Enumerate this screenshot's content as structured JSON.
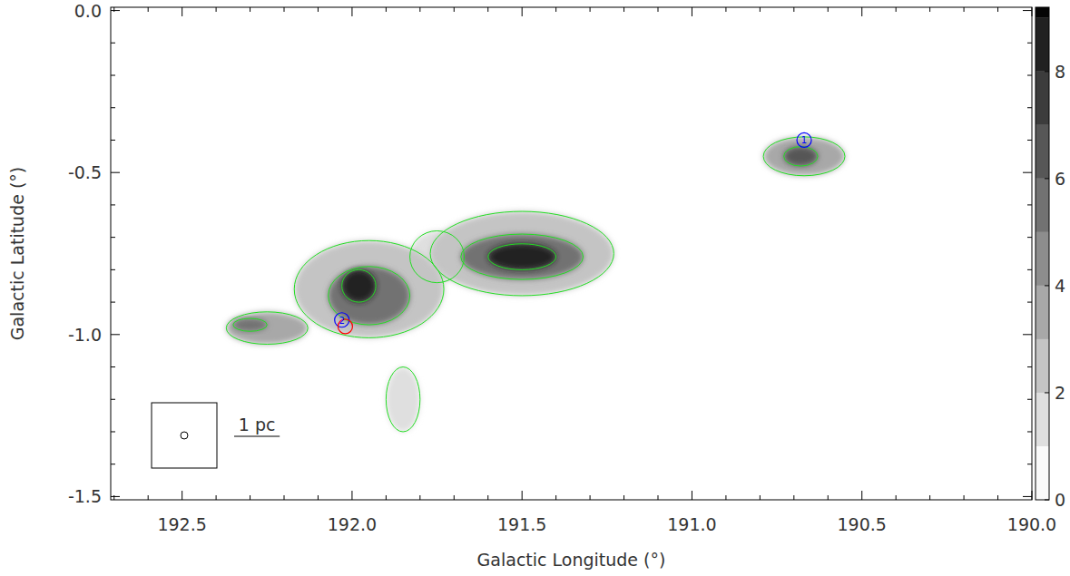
{
  "chart_data": {
    "type": "heatmap",
    "x_label": "Galactic Longitude (°)",
    "y_label": "Galactic Latitude (°)",
    "xlim": [
      192.71,
      190.0
    ],
    "ylim": [
      -1.51,
      0.01
    ],
    "xticks": [
      {
        "value": 192.5,
        "label": "192.5"
      },
      {
        "value": 192.0,
        "label": "192.0"
      },
      {
        "value": 191.5,
        "label": "191.5"
      },
      {
        "value": 191.0,
        "label": "191.0"
      },
      {
        "value": 190.5,
        "label": "190.5"
      },
      {
        "value": 190.0,
        "label": "190.0"
      }
    ],
    "yticks": [
      {
        "value": 0,
        "label": "0.0"
      },
      {
        "value": -0.5,
        "label": "-0.5"
      },
      {
        "value": -1.0,
        "label": "-1.0"
      },
      {
        "value": -1.5,
        "label": "-1.5"
      }
    ],
    "clumps": [
      {
        "l": 191.85,
        "b": -1.2,
        "size_l": 0.05,
        "size_b": 0.1,
        "value": 1
      },
      {
        "l": 191.75,
        "b": -0.76,
        "size_l": 0.08,
        "size_b": 0.08,
        "value": 1.5
      },
      {
        "l": 191.5,
        "b": -0.75,
        "size_l": 0.27,
        "size_b": 0.13,
        "value": 2
      },
      {
        "l": 191.95,
        "b": -0.86,
        "size_l": 0.22,
        "size_b": 0.15,
        "value": 2
      },
      {
        "l": 190.67,
        "b": -0.45,
        "size_l": 0.12,
        "size_b": 0.06,
        "value": 3
      },
      {
        "l": 192.25,
        "b": -0.98,
        "size_l": 0.12,
        "size_b": 0.05,
        "value": 3
      },
      {
        "l": 191.5,
        "b": -0.76,
        "size_l": 0.18,
        "size_b": 0.07,
        "value": 5
      },
      {
        "l": 191.95,
        "b": -0.88,
        "size_l": 0.12,
        "size_b": 0.09,
        "value": 5
      },
      {
        "l": 192.3,
        "b": -0.97,
        "size_l": 0.05,
        "size_b": 0.02,
        "value": 5
      },
      {
        "l": 190.68,
        "b": -0.45,
        "size_l": 0.05,
        "size_b": 0.03,
        "value": 6
      },
      {
        "l": 191.5,
        "b": -0.76,
        "size_l": 0.1,
        "size_b": 0.04,
        "value": 8
      },
      {
        "l": 191.98,
        "b": -0.85,
        "size_l": 0.05,
        "size_b": 0.05,
        "value": 8
      }
    ],
    "markers": [
      {
        "label": "1",
        "l": 190.67,
        "b": -0.4,
        "color": "blue"
      },
      {
        "label": "2",
        "l": 192.03,
        "b": -0.955,
        "color": "blue"
      },
      {
        "l": 192.02,
        "b": -0.975,
        "color": "red"
      }
    ],
    "scale_bar": {
      "label": "1 pc",
      "length_deg": 0.134
    },
    "beam_deg": 0.016,
    "colorbar_range": [
      0,
      9.2
    ],
    "colorbar_ticks": [
      0,
      2,
      4,
      6,
      8
    ]
  }
}
